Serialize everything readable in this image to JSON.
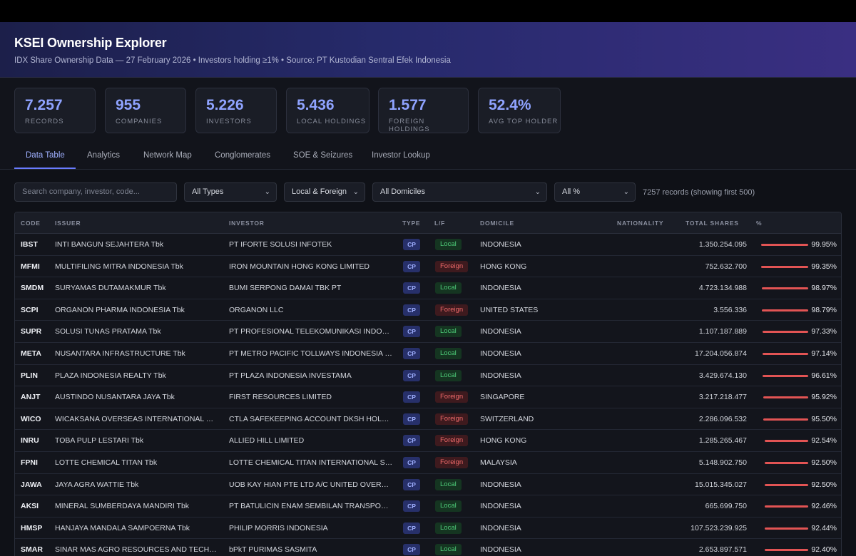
{
  "app": {
    "title": "KSEI Ownership Explorer",
    "subtitle": "IDX Share Ownership Data — 27 February 2026 • Investors holding ≥1% • Source: PT Kustodian Sentral Efek Indonesia"
  },
  "stats": [
    {
      "value": "7.257",
      "label": "Records"
    },
    {
      "value": "955",
      "label": "Companies"
    },
    {
      "value": "5.226",
      "label": "Investors"
    },
    {
      "value": "5.436",
      "label": "Local Holdings"
    },
    {
      "value": "1.577",
      "label": "Foreign Holdings"
    },
    {
      "value": "52.4%",
      "label": "Avg Top Holder"
    }
  ],
  "tabs": [
    {
      "label": "Data Table",
      "active": true
    },
    {
      "label": "Analytics"
    },
    {
      "label": "Network Map"
    },
    {
      "label": "Conglomerates"
    },
    {
      "label": "SOE & Seizures"
    },
    {
      "label": "Investor Lookup"
    }
  ],
  "filters": {
    "search_placeholder": "Search company, investor, code...",
    "type": "All Types",
    "lf": "Local & Foreign",
    "domicile": "All Domiciles",
    "pct": "All %",
    "record_count": "7257 records (showing first 500)"
  },
  "table": {
    "headers": [
      "CODE",
      "ISSUER",
      "INVESTOR",
      "TYPE",
      "L/F",
      "DOMICILE",
      "NATIONALITY",
      "TOTAL SHARES",
      "%"
    ],
    "rows": [
      {
        "code": "IBST",
        "issuer": "INTI BANGUN SEJAHTERA Tbk",
        "investor": "PT IFORTE SOLUSI INFOTEK",
        "type": "CP",
        "lf": "Local",
        "domicile": "INDONESIA",
        "nationality": "",
        "shares": "1.350.254.095",
        "pct": "99.95%",
        "pct_value": 99.95
      },
      {
        "code": "MFMI",
        "issuer": "MULTIFILING MITRA INDONESIA Tbk",
        "investor": "IRON MOUNTAIN HONG KONG LIMITED",
        "type": "CP",
        "lf": "Foreign",
        "domicile": "HONG KONG",
        "nationality": "",
        "shares": "752.632.700",
        "pct": "99.35%",
        "pct_value": 99.35
      },
      {
        "code": "SMDM",
        "issuer": "SURYAMAS DUTAMAKMUR Tbk",
        "investor": "BUMI SERPONG DAMAI TBK PT",
        "type": "CP",
        "lf": "Local",
        "domicile": "INDONESIA",
        "nationality": "",
        "shares": "4.723.134.988",
        "pct": "98.97%",
        "pct_value": 98.97
      },
      {
        "code": "SCPI",
        "issuer": "ORGANON PHARMA INDONESIA Tbk",
        "investor": "ORGANON LLC",
        "type": "CP",
        "lf": "Foreign",
        "domicile": "UNITED STATES",
        "nationality": "",
        "shares": "3.556.336",
        "pct": "98.79%",
        "pct_value": 98.79
      },
      {
        "code": "SUPR",
        "issuer": "SOLUSI TUNAS PRATAMA Tbk",
        "investor": "PT PROFESIONAL TELEKOMUNIKASI INDONESIA",
        "type": "CP",
        "lf": "Local",
        "domicile": "INDONESIA",
        "nationality": "",
        "shares": "1.107.187.889",
        "pct": "97.33%",
        "pct_value": 97.33
      },
      {
        "code": "META",
        "issuer": "NUSANTARA INFRASTRUCTURE Tbk",
        "investor": "PT METRO PACIFIC TOLLWAYS INDONESIA SER...",
        "type": "CP",
        "lf": "Local",
        "domicile": "INDONESIA",
        "nationality": "",
        "shares": "17.204.056.874",
        "pct": "97.14%",
        "pct_value": 97.14
      },
      {
        "code": "PLIN",
        "issuer": "PLAZA INDONESIA REALTY Tbk",
        "investor": "PT PLAZA INDONESIA INVESTAMA",
        "type": "CP",
        "lf": "Local",
        "domicile": "INDONESIA",
        "nationality": "",
        "shares": "3.429.674.130",
        "pct": "96.61%",
        "pct_value": 96.61
      },
      {
        "code": "ANJT",
        "issuer": "AUSTINDO NUSANTARA JAYA Tbk",
        "investor": "FIRST RESOURCES LIMITED",
        "type": "CP",
        "lf": "Foreign",
        "domicile": "SINGAPORE",
        "nationality": "",
        "shares": "3.217.218.477",
        "pct": "95.92%",
        "pct_value": 95.92
      },
      {
        "code": "WICO",
        "issuer": "WICAKSANA OVERSEAS INTERNATIONAL Tbk",
        "investor": "CTLA SAFEKEEPING ACCOUNT DKSH HOLDING...",
        "type": "CP",
        "lf": "Foreign",
        "domicile": "SWITZERLAND",
        "nationality": "",
        "shares": "2.286.096.532",
        "pct": "95.50%",
        "pct_value": 95.5
      },
      {
        "code": "INRU",
        "issuer": "TOBA PULP LESTARI Tbk",
        "investor": "ALLIED HILL LIMITED",
        "type": "CP",
        "lf": "Foreign",
        "domicile": "HONG KONG",
        "nationality": "",
        "shares": "1.285.265.467",
        "pct": "92.54%",
        "pct_value": 92.54
      },
      {
        "code": "FPNI",
        "issuer": "LOTTE CHEMICAL TITAN Tbk",
        "investor": "LOTTE CHEMICAL TITAN INTERNATIONAL SDN....",
        "type": "CP",
        "lf": "Foreign",
        "domicile": "MALAYSIA",
        "nationality": "",
        "shares": "5.148.902.750",
        "pct": "92.50%",
        "pct_value": 92.5
      },
      {
        "code": "JAWA",
        "issuer": "JAYA AGRA WATTIE Tbk",
        "investor": "UOB KAY HIAN PTE LTD A/C UNITED OVERSEA...",
        "type": "CP",
        "lf": "Local",
        "domicile": "INDONESIA",
        "nationality": "",
        "shares": "15.015.345.027",
        "pct": "92.50%",
        "pct_value": 92.5
      },
      {
        "code": "AKSI",
        "issuer": "MINERAL SUMBERDAYA MANDIRI Tbk",
        "investor": "PT BATULICIN ENAM SEMBILAN TRANSPORTASI",
        "type": "CP",
        "lf": "Local",
        "domicile": "INDONESIA",
        "nationality": "",
        "shares": "665.699.750",
        "pct": "92.46%",
        "pct_value": 92.46
      },
      {
        "code": "HMSP",
        "issuer": "HANJAYA MANDALA SAMPOERNA Tbk",
        "investor": "PHILIP MORRIS INDONESIA",
        "type": "CP",
        "lf": "Local",
        "domicile": "INDONESIA",
        "nationality": "",
        "shares": "107.523.239.925",
        "pct": "92.44%",
        "pct_value": 92.44
      },
      {
        "code": "SMAR",
        "issuer": "SINAR MAS AGRO RESOURCES AND TECHNOL...",
        "investor": "bPkT PURIMAS SASMITA",
        "type": "CP",
        "lf": "Local",
        "domicile": "INDONESIA",
        "nationality": "",
        "shares": "2.653.897.571",
        "pct": "92.40%",
        "pct_value": 92.4
      }
    ]
  },
  "colors": {
    "accent": "#8fa3ff",
    "local": "#4fcf7a",
    "foreign": "#ef6a6a",
    "bar": "#e25454"
  }
}
